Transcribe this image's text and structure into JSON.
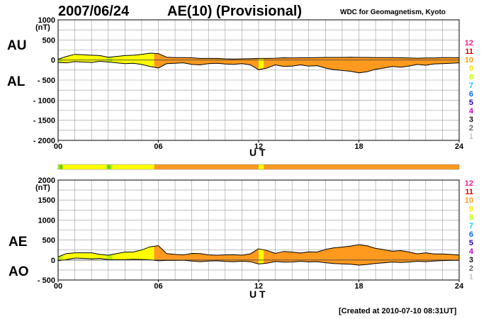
{
  "header": {
    "date": "2007/06/24",
    "index_title": "AE(10) (Provisional)",
    "source": "WDC for Geomagnetism, Kyoto"
  },
  "footer": {
    "created": "[Created at 2010-07-10 08:31UT]"
  },
  "activity_scale": {
    "levels": [
      {
        "label": "12",
        "color": "#ff1a8c"
      },
      {
        "label": "11",
        "color": "#e00000"
      },
      {
        "label": "10",
        "color": "#ff9a1f"
      },
      {
        "label": "9",
        "color": "#ffe600"
      },
      {
        "label": "8",
        "color": "#c8ff00"
      },
      {
        "label": "7",
        "color": "#22ccff"
      },
      {
        "label": "6",
        "color": "#0a64ff"
      },
      {
        "label": "5",
        "color": "#2c00a8"
      },
      {
        "label": "4",
        "color": "#cc00cc"
      },
      {
        "label": "3",
        "color": "#111111"
      },
      {
        "label": "2",
        "color": "#666666"
      },
      {
        "label": "1",
        "color": "#c8c8c8"
      }
    ]
  },
  "colors": {
    "level10": "#ff9a1f",
    "level9": "#ffff00",
    "level8": "#b8f000",
    "level7green": "#5ad300",
    "grid": "#9a9a9a"
  },
  "timeline": {
    "segments": [
      {
        "start": 0.0,
        "end": 0.25,
        "level": "8"
      },
      {
        "start": 0.25,
        "end": 2.9,
        "level": "9"
      },
      {
        "start": 2.9,
        "end": 3.25,
        "level": "8"
      },
      {
        "start": 3.25,
        "end": 5.75,
        "level": "9"
      },
      {
        "start": 5.75,
        "end": 12.0,
        "level": "10"
      },
      {
        "start": 12.0,
        "end": 12.3,
        "level": "9"
      },
      {
        "start": 12.3,
        "end": 24.0,
        "level": "10"
      }
    ]
  },
  "chart_data": [
    {
      "type": "area",
      "id": "au_al",
      "title": "AU / AL",
      "labels": {
        "upper": "AU",
        "lower": "AL",
        "unit": "(nT)"
      },
      "xlabel": "U T",
      "xlim": [
        0,
        24
      ],
      "xticks": [
        "00",
        "06",
        "12",
        "18",
        "24"
      ],
      "ylim": [
        -2000,
        1000
      ],
      "yticks": [
        {
          "value": 1000,
          "label": "1000"
        },
        {
          "value": 500,
          "label": "500"
        },
        {
          "value": 0,
          "label": "0"
        },
        {
          "value": -500,
          "label": "- 500"
        },
        {
          "value": -1000,
          "label": "- 1000"
        },
        {
          "value": -1500,
          "label": "- 1500"
        },
        {
          "value": -2000,
          "label": "- 2000"
        }
      ],
      "x": [
        0,
        0.5,
        1,
        1.5,
        2,
        2.5,
        3,
        3.5,
        4,
        4.5,
        5,
        5.5,
        6,
        6.5,
        7,
        7.5,
        8,
        8.5,
        9,
        9.5,
        10,
        10.5,
        11,
        11.5,
        12,
        12.5,
        13,
        13.5,
        14,
        14.5,
        15,
        15.5,
        16,
        16.5,
        17,
        17.5,
        18,
        18.5,
        19,
        19.5,
        20,
        20.5,
        21,
        21.5,
        22,
        22.5,
        23,
        23.5,
        24
      ],
      "series": [
        {
          "name": "AU",
          "values": [
            20,
            90,
            140,
            130,
            120,
            110,
            70,
            90,
            110,
            120,
            140,
            170,
            160,
            70,
            60,
            60,
            55,
            40,
            40,
            40,
            30,
            25,
            30,
            35,
            40,
            40,
            45,
            55,
            50,
            55,
            55,
            60,
            65,
            65,
            65,
            70,
            65,
            65,
            60,
            60,
            60,
            55,
            50,
            45,
            50,
            50,
            60,
            60,
            55
          ]
        },
        {
          "name": "AL",
          "values": [
            -60,
            -70,
            -40,
            -50,
            -60,
            -30,
            -50,
            -70,
            -90,
            -80,
            -110,
            -160,
            -200,
            -90,
            -80,
            -70,
            -110,
            -120,
            -90,
            -80,
            -100,
            -110,
            -90,
            -120,
            -240,
            -200,
            -120,
            -160,
            -150,
            -120,
            -150,
            -140,
            -200,
            -240,
            -260,
            -280,
            -320,
            -290,
            -230,
            -200,
            -160,
            -180,
            -150,
            -110,
            -130,
            -100,
            -90,
            -80,
            -70
          ]
        }
      ]
    },
    {
      "type": "area",
      "id": "ae_ao",
      "title": "AE / AO",
      "labels": {
        "upper": "AE",
        "lower": "AO",
        "unit": "(nT)"
      },
      "xlabel": "U T",
      "xlim": [
        0,
        24
      ],
      "xticks": [
        "00",
        "06",
        "12",
        "18",
        "24"
      ],
      "ylim": [
        -500,
        2000
      ],
      "yticks": [
        {
          "value": 2000,
          "label": "2000"
        },
        {
          "value": 1500,
          "label": "1500"
        },
        {
          "value": 1000,
          "label": "1000"
        },
        {
          "value": 500,
          "label": "500"
        },
        {
          "value": 0,
          "label": "0"
        },
        {
          "value": -500,
          "label": "- 500"
        }
      ],
      "x": [
        0,
        0.5,
        1,
        1.5,
        2,
        2.5,
        3,
        3.5,
        4,
        4.5,
        5,
        5.5,
        6,
        6.5,
        7,
        7.5,
        8,
        8.5,
        9,
        9.5,
        10,
        10.5,
        11,
        11.5,
        12,
        12.5,
        13,
        13.5,
        14,
        14.5,
        15,
        15.5,
        16,
        16.5,
        17,
        17.5,
        18,
        18.5,
        19,
        19.5,
        20,
        20.5,
        21,
        21.5,
        22,
        22.5,
        23,
        23.5,
        24
      ],
      "series": [
        {
          "name": "AE",
          "values": [
            80,
            160,
            180,
            180,
            180,
            140,
            120,
            160,
            200,
            200,
            250,
            330,
            360,
            160,
            140,
            130,
            165,
            160,
            130,
            120,
            130,
            135,
            120,
            155,
            280,
            240,
            165,
            215,
            200,
            175,
            205,
            200,
            265,
            305,
            325,
            350,
            385,
            355,
            290,
            260,
            220,
            235,
            200,
            155,
            180,
            150,
            150,
            140,
            125
          ]
        },
        {
          "name": "AO",
          "values": [
            -20,
            10,
            50,
            40,
            30,
            40,
            10,
            10,
            10,
            20,
            15,
            5,
            -20,
            -10,
            -10,
            -5,
            -27,
            -40,
            -25,
            -20,
            -35,
            -42,
            -30,
            -42,
            -100,
            -80,
            -38,
            -52,
            -50,
            -32,
            -47,
            -40,
            -67,
            -87,
            -97,
            -105,
            -127,
            -112,
            -85,
            -70,
            -50,
            -62,
            -50,
            -32,
            -40,
            -25,
            -15,
            -10,
            -7
          ]
        }
      ]
    }
  ]
}
